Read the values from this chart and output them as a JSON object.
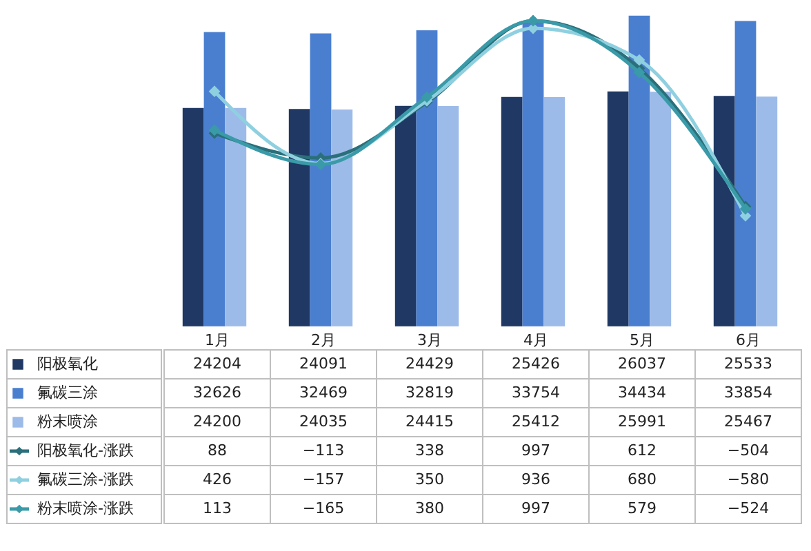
{
  "chart_data": {
    "type": "bar",
    "categories": [
      "1月",
      "2月",
      "3月",
      "4月",
      "5月",
      "6月"
    ],
    "series": [
      {
        "name": "阳极氧化",
        "color": "#1f3864",
        "values": [
          24204,
          24091,
          24429,
          25426,
          26037,
          25533
        ]
      },
      {
        "name": "氟碳三涂",
        "color": "#4a7fd0",
        "values": [
          32626,
          32469,
          32819,
          33754,
          34434,
          33854
        ]
      },
      {
        "name": "粉末喷涂",
        "color": "#9dbbe8",
        "values": [
          24200,
          24035,
          24415,
          25412,
          25991,
          25467
        ]
      },
      {
        "name": "阳极氧化-涨跌",
        "type": "line",
        "axis": "y2",
        "color": "#2a6f7a",
        "values": [
          88,
          -113,
          338,
          997,
          612,
          -504
        ]
      },
      {
        "name": "氟碳三涂-涨跌",
        "type": "line",
        "axis": "y2",
        "color": "#8fd0e0",
        "values": [
          426,
          -157,
          350,
          936,
          680,
          -580
        ]
      },
      {
        "name": "粉末喷涂-涨跌",
        "type": "line",
        "axis": "y2",
        "color": "#3a9aa8",
        "values": [
          113,
          -165,
          380,
          997,
          579,
          -524
        ]
      }
    ],
    "data_labels": true,
    "legend": "bottom left",
    "marker": "diamond",
    "line_style": "solid"
  }
}
